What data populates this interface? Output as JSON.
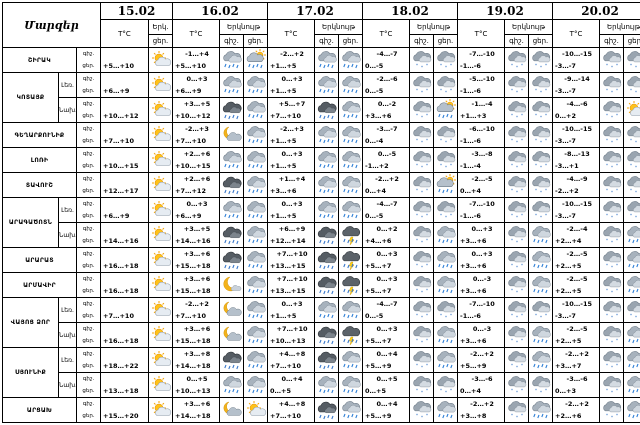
{
  "corner_label": "Մարզեր",
  "headers": {
    "temp": "T°C",
    "cloud_short": "Երկ.",
    "cloud": "Երկնույթ",
    "day": "ցեր.",
    "night": "գիշ."
  },
  "days": [
    {
      "date": "15.02",
      "cols": "single"
    },
    {
      "date": "16.02",
      "cols": "double"
    },
    {
      "date": "17.02",
      "cols": "double"
    },
    {
      "date": "18.02",
      "cols": "double"
    },
    {
      "date": "19.02",
      "cols": "double"
    },
    {
      "date": "20.02",
      "cols": "double"
    }
  ],
  "rows": [
    {
      "region": "ՇԻՐԱԿ",
      "sub": "",
      "d15": "+5…+10",
      "t": [
        [
          "-1…+4",
          "+5…+10"
        ],
        [
          "-2…+2",
          "+1…+5"
        ],
        [
          "-4…-7",
          "0…-5"
        ],
        [
          "-7…-10",
          "-1…-6"
        ],
        [
          "-10…-15",
          "-3…-7"
        ]
      ],
      "icons": [
        "sun-cloud",
        [
          "cloud-rain",
          "cloud-rain-sun"
        ],
        [
          "cloud-rain",
          "cloud-rain"
        ],
        [
          "cloud-snow",
          "cloud-snow"
        ],
        [
          "cloud-snow",
          "cloud-snow"
        ],
        [
          "cloud-snow",
          "cloud-snow"
        ]
      ]
    },
    {
      "region": "ԿՈՏԱՅՔ",
      "sub": "Լեռ.",
      "d15": "+6…+9",
      "t": [
        [
          "0…+3",
          "+6…+9"
        ],
        [
          "0…+3",
          "+1…+5"
        ],
        [
          "-2…-6",
          "0…-5"
        ],
        [
          "-5…-10",
          "-1…-6"
        ],
        [
          "-9…-14",
          "-3…-7"
        ]
      ],
      "icons": [
        "sun-cloud",
        [
          "cloud-rain",
          "cloud-rain"
        ],
        [
          "cloud-rain",
          "cloud-rain"
        ],
        [
          "cloud-snow",
          "cloud-snow"
        ],
        [
          "cloud-snow",
          "cloud-snow"
        ],
        [
          "cloud-snow",
          "cloud-snow"
        ]
      ]
    },
    {
      "region": "",
      "sub": "Նախ.",
      "d15": "+10…+12",
      "t": [
        [
          "+3…+5",
          "+10…+12"
        ],
        [
          "+5…+7",
          "+7…+10"
        ],
        [
          "0…-2",
          "+3…+6"
        ],
        [
          "-1…-4",
          "+1…+3"
        ],
        [
          "-4…-6",
          "0…+2"
        ]
      ],
      "icons": [
        "sun-cloud",
        [
          "cloud-dark",
          "cloud-rain"
        ],
        [
          "cloud-dark",
          "cloud-rain"
        ],
        [
          "cloud-snow",
          "cloud-rain-sun"
        ],
        [
          "cloud-snow",
          "cloud-snow"
        ],
        [
          "cloud-snow",
          "sun-cloud"
        ]
      ]
    },
    {
      "region": "ԳԵՂԱՐՔՈՒՆԻՔ",
      "sub": "",
      "d15": "+7…+10",
      "t": [
        [
          "-2…+3",
          "+7…+10"
        ],
        [
          "-2…+3",
          "+1…+5"
        ],
        [
          "-3…-7",
          "0…-4"
        ],
        [
          "-6…-10",
          "-1…-6"
        ],
        [
          "-10…-15",
          "-3…-7"
        ]
      ],
      "icons": [
        "sun-cloud",
        [
          "moon-cloud",
          "cloud-rain"
        ],
        [
          "cloud-rain",
          "cloud-rain"
        ],
        [
          "cloud-snow",
          "cloud-snow"
        ],
        [
          "cloud-snow",
          "cloud-snow"
        ],
        [
          "cloud-snow",
          "cloud-snow"
        ]
      ]
    },
    {
      "region": "ԼՈՌԻ",
      "sub": "",
      "d15": "+10…+15",
      "t": [
        [
          "+2…+6",
          "+10…+15"
        ],
        [
          "0…+3",
          "+1…+5"
        ],
        [
          "0…-5",
          "-1…+2"
        ],
        [
          "-3…-8",
          "-1…-4"
        ],
        [
          "-8…-13",
          "-3…+1"
        ]
      ],
      "icons": [
        "sun-cloud",
        [
          "cloud-rain",
          "cloud-rain"
        ],
        [
          "cloud-rain",
          "cloud-rain"
        ],
        [
          "cloud-snow",
          "cloud-snow"
        ],
        [
          "cloud-snow",
          "cloud-snow"
        ],
        [
          "cloud-snow",
          "cloud-snow"
        ]
      ]
    },
    {
      "region": "ՏԱՎՈՒՇ",
      "sub": "",
      "d15": "+12…+17",
      "t": [
        [
          "+2…+6",
          "+7…+12"
        ],
        [
          "+1…+4",
          "+3…+6"
        ],
        [
          "-2…+2",
          "0…+4"
        ],
        [
          "-2…-5",
          "0…+4"
        ],
        [
          "-4…-9",
          "-2…+2"
        ]
      ],
      "icons": [
        "sun-cloud",
        [
          "cloud-dark",
          "cloud-rain"
        ],
        [
          "cloud-rain",
          "cloud-rain"
        ],
        [
          "cloud-snow",
          "cloud-rain-sun"
        ],
        [
          "cloud-snow",
          "cloud-snow"
        ],
        [
          "cloud-snow",
          "cloud-snow"
        ]
      ]
    },
    {
      "region": "ԱՐԱԳԱԾՈՏՆ",
      "sub": "Լեռ.",
      "d15": "+6…+9",
      "t": [
        [
          "0…+3",
          "+6…+9"
        ],
        [
          "0…+3",
          "+1…+5"
        ],
        [
          "-4…-7",
          "0…-5"
        ],
        [
          "-7…-10",
          "-1…-6"
        ],
        [
          "-10…-15",
          "-3…-7"
        ]
      ],
      "icons": [
        "sun-cloud",
        [
          "cloud-rain",
          "cloud-rain"
        ],
        [
          "cloud-rain",
          "cloud-rain"
        ],
        [
          "cloud-snow",
          "cloud-snow"
        ],
        [
          "cloud-snow",
          "cloud-snow"
        ],
        [
          "cloud-snow",
          "cloud-snow"
        ]
      ]
    },
    {
      "region": "",
      "sub": "Նախ.",
      "d15": "+14…+16",
      "t": [
        [
          "+3…+5",
          "+14…+16"
        ],
        [
          "+6…+9",
          "+12…+14"
        ],
        [
          "0…+2",
          "+4…+6"
        ],
        [
          "0…+3",
          "+3…+6"
        ],
        [
          "-2…-4",
          "+2…+4"
        ]
      ],
      "icons": [
        "sun-cloud",
        [
          "cloud-dark",
          "cloud-rain"
        ],
        [
          "cloud-dark",
          "cloud-storm"
        ],
        [
          "cloud-snow",
          "cloud-rain"
        ],
        [
          "cloud-snow",
          "cloud-rain"
        ],
        [
          "cloud-snow",
          "cloud-rain"
        ]
      ]
    },
    {
      "region": "ԱՐԱՐԱՏ",
      "sub": "",
      "d15": "+16…+18",
      "t": [
        [
          "+3…+6",
          "+15…+18"
        ],
        [
          "+7…+10",
          "+13…+15"
        ],
        [
          "0…+3",
          "+5…+7"
        ],
        [
          "0…+3",
          "+3…+6"
        ],
        [
          "-2…-5",
          "+2…+5"
        ]
      ],
      "icons": [
        "sun-cloud",
        [
          "cloud-dark",
          "cloud-rain"
        ],
        [
          "cloud-dark",
          "cloud-storm"
        ],
        [
          "cloud-snow",
          "cloud-rain"
        ],
        [
          "cloud-snow",
          "cloud-rain"
        ],
        [
          "cloud-snow",
          "cloud-rain"
        ]
      ]
    },
    {
      "region": "ԱՐՄԱՎԻՐ",
      "sub": "",
      "d15": "+16…+18",
      "t": [
        [
          "+3…+6",
          "+15…+18"
        ],
        [
          "+7…+10",
          "+13…+15"
        ],
        [
          "0…+3",
          "+5…+7"
        ],
        [
          "0…-3",
          "+3…+6"
        ],
        [
          "-2…-5",
          "+2…+5"
        ]
      ],
      "icons": [
        "sun-cloud",
        [
          "moon",
          "cloud-rain"
        ],
        [
          "cloud-dark",
          "cloud-storm"
        ],
        [
          "cloud-snow",
          "cloud-rain"
        ],
        [
          "cloud-snow",
          "cloud-rain"
        ],
        [
          "cloud-snow",
          "cloud-rain"
        ]
      ]
    },
    {
      "region": "ՎԱՅՈՑ ՁՈՐ",
      "sub": "Լեռ.",
      "d15": "+7…+10",
      "t": [
        [
          "-2…+2",
          "+7…+10"
        ],
        [
          "0…+3",
          "+1…+5"
        ],
        [
          "-4…-7",
          "0…-5"
        ],
        [
          "-7…-10",
          "-1…-6"
        ],
        [
          "-10…-15",
          "-3…-7"
        ]
      ],
      "icons": [
        "sun-cloud",
        [
          "moon-cloud",
          "cloud-rain"
        ],
        [
          "cloud-rain",
          "cloud-rain"
        ],
        [
          "cloud-snow",
          "cloud-snow"
        ],
        [
          "cloud-snow",
          "cloud-snow"
        ],
        [
          "cloud-snow",
          "cloud-snow"
        ]
      ]
    },
    {
      "region": "",
      "sub": "Նախ.",
      "d15": "+16…+18",
      "t": [
        [
          "+3…+6",
          "+15…+18"
        ],
        [
          "+7…+10",
          "+10…+13"
        ],
        [
          "0…+3",
          "+5…+7"
        ],
        [
          "0…-3",
          "+3…+6"
        ],
        [
          "-2…-5",
          "+2…+5"
        ]
      ],
      "icons": [
        "sun-cloud",
        [
          "moon-cloud",
          "cloud-rain"
        ],
        [
          "cloud-dark",
          "cloud-storm"
        ],
        [
          "cloud-snow",
          "cloud-rain"
        ],
        [
          "cloud-snow",
          "cloud-rain"
        ],
        [
          "cloud-snow",
          "cloud-rain"
        ]
      ]
    },
    {
      "region": "ՍՅՈՒՆԻՔ",
      "sub": "Լեռ.",
      "d15": "+18…+22",
      "t": [
        [
          "+3…+8",
          "+14…+18"
        ],
        [
          "+4…+8",
          "+7…+10"
        ],
        [
          "0…+4",
          "+5…+9"
        ],
        [
          "-2…+2",
          "+5…+9"
        ],
        [
          "-2…+2",
          "+3…+7"
        ]
      ],
      "icons": [
        "sun-cloud",
        [
          "cloud-dark",
          "cloud-rain"
        ],
        [
          "cloud-dark",
          "cloud-rain"
        ],
        [
          "cloud-snow",
          "cloud-rain"
        ],
        [
          "cloud-snow",
          "cloud-rain"
        ],
        [
          "cloud-snow",
          "cloud-rain"
        ]
      ]
    },
    {
      "region": "",
      "sub": "Նախ.",
      "d15": "+13…+18",
      "t": [
        [
          "0…+5",
          "+10…+13"
        ],
        [
          "0…+4",
          "0…+5"
        ],
        [
          "0…+5",
          "0…+5"
        ],
        [
          "-3…-6",
          "0…+4"
        ],
        [
          "-3…-6",
          "0…+3"
        ]
      ],
      "icons": [
        "sun-cloud",
        [
          "cloud-rain",
          "cloud-rain"
        ],
        [
          "cloud-rain",
          "cloud-rain"
        ],
        [
          "cloud-snow",
          "cloud-snow"
        ],
        [
          "cloud-snow",
          "cloud-snow"
        ],
        [
          "cloud-snow",
          "cloud-rain"
        ]
      ]
    },
    {
      "region": "ԱՐՑԱԽ",
      "sub": "",
      "d15": "+15…+20",
      "t": [
        [
          "+3…+6",
          "+14…+18"
        ],
        [
          "+4…+8",
          "+7…+10"
        ],
        [
          "0…+4",
          "+5…+9"
        ],
        [
          "-2…+2",
          "+3…+8"
        ],
        [
          "-2…+2",
          "+2…+6"
        ]
      ],
      "icons": [
        "sun-cloud",
        [
          "moon-cloud",
          "sun-cloud"
        ],
        [
          "cloud-dark",
          "cloud-rain"
        ],
        [
          "cloud-snow",
          "cloud-rain"
        ],
        [
          "cloud-snow",
          "cloud-rain"
        ],
        [
          "cloud-snow",
          "cloud-rain"
        ]
      ]
    }
  ]
}
